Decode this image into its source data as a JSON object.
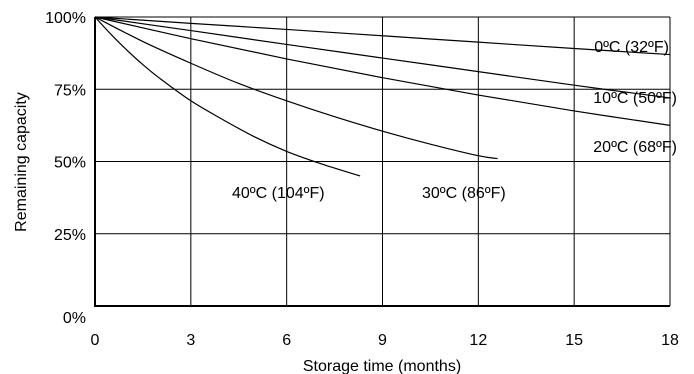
{
  "chart_data": {
    "type": "line",
    "title": "",
    "xlabel": "Storage time (months)",
    "ylabel": "Remaining capacity",
    "xlim": [
      0,
      18
    ],
    "ylim": [
      0,
      100
    ],
    "x_ticks": [
      "0",
      "3",
      "6",
      "9",
      "12",
      "15",
      "18"
    ],
    "y_ticks": [
      "0%",
      "25%",
      "50%",
      "75%",
      "100%"
    ],
    "grid": true,
    "series": [
      {
        "name": "0ºC (32ºF)",
        "x": [
          0,
          3,
          6,
          9,
          12,
          15,
          18
        ],
        "y": [
          100,
          97.8,
          95.7,
          93.5,
          91.3,
          89.1,
          87
        ]
      },
      {
        "name": "10ºC (50ºF)",
        "x": [
          0,
          3,
          6,
          9,
          12,
          15,
          18
        ],
        "y": [
          100,
          95.3,
          90.5,
          85.8,
          81.1,
          76.4,
          72
        ]
      },
      {
        "name": "20ºC (68ºF)",
        "x": [
          0,
          3,
          6,
          9,
          12,
          15,
          18
        ],
        "y": [
          100,
          92.5,
          85.5,
          79,
          73,
          67.5,
          62.5
        ]
      },
      {
        "name": "30ºC (86ºF)",
        "x": [
          0,
          1.5,
          3,
          4.5,
          6,
          7.5,
          9,
          10.5,
          12,
          12.6
        ],
        "y": [
          100,
          91.5,
          84,
          77,
          71,
          65.5,
          60.5,
          56,
          52,
          51
        ]
      },
      {
        "name": "40ºC (104ºF)",
        "x": [
          0,
          0.5,
          1,
          1.5,
          2,
          3,
          4,
          5,
          6,
          7,
          8,
          8.3
        ],
        "y": [
          100,
          94,
          88.5,
          83.5,
          79,
          71,
          64.5,
          58.5,
          53.5,
          49.5,
          46,
          45
        ]
      }
    ]
  }
}
